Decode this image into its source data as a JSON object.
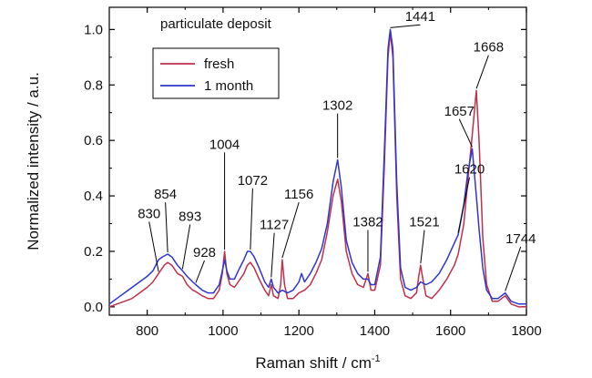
{
  "chart_data": {
    "type": "line",
    "title": "particulate deposit",
    "xlabel": "Raman shift / cm",
    "xlabel_superscript": "-1",
    "ylabel": "Normalized intensity / a.u.",
    "xlim": [
      700,
      1800
    ],
    "ylim": [
      -0.03,
      1.08
    ],
    "xticks": [
      800,
      1000,
      1200,
      1400,
      1600,
      1800
    ],
    "yticks": [
      0.0,
      0.2,
      0.4,
      0.6,
      0.8,
      1.0
    ],
    "ytick_labels": [
      "0.0",
      "0.2",
      "0.4",
      "0.6",
      "0.8",
      "1.0"
    ],
    "legend_position": "upper-left",
    "series": [
      {
        "name": "fresh",
        "color": "#c0304a",
        "points": [
          [
            700,
            0.0
          ],
          [
            720,
            0.01
          ],
          [
            740,
            0.02
          ],
          [
            760,
            0.03
          ],
          [
            780,
            0.05
          ],
          [
            800,
            0.07
          ],
          [
            815,
            0.09
          ],
          [
            830,
            0.12
          ],
          [
            845,
            0.15
          ],
          [
            854,
            0.16
          ],
          [
            865,
            0.15
          ],
          [
            880,
            0.12
          ],
          [
            893,
            0.11
          ],
          [
            905,
            0.08
          ],
          [
            920,
            0.06
          ],
          [
            928,
            0.055
          ],
          [
            945,
            0.04
          ],
          [
            960,
            0.03
          ],
          [
            975,
            0.03
          ],
          [
            990,
            0.06
          ],
          [
            998,
            0.12
          ],
          [
            1004,
            0.2
          ],
          [
            1010,
            0.12
          ],
          [
            1018,
            0.08
          ],
          [
            1030,
            0.07
          ],
          [
            1040,
            0.09
          ],
          [
            1055,
            0.12
          ],
          [
            1064,
            0.15
          ],
          [
            1072,
            0.16
          ],
          [
            1082,
            0.14
          ],
          [
            1095,
            0.1
          ],
          [
            1110,
            0.06
          ],
          [
            1120,
            0.04
          ],
          [
            1127,
            0.08
          ],
          [
            1133,
            0.04
          ],
          [
            1145,
            0.03
          ],
          [
            1152,
            0.08
          ],
          [
            1156,
            0.17
          ],
          [
            1162,
            0.08
          ],
          [
            1170,
            0.03
          ],
          [
            1185,
            0.03
          ],
          [
            1200,
            0.05
          ],
          [
            1215,
            0.06
          ],
          [
            1230,
            0.08
          ],
          [
            1245,
            0.12
          ],
          [
            1260,
            0.17
          ],
          [
            1275,
            0.27
          ],
          [
            1290,
            0.4
          ],
          [
            1302,
            0.46
          ],
          [
            1312,
            0.38
          ],
          [
            1325,
            0.2
          ],
          [
            1340,
            0.12
          ],
          [
            1355,
            0.08
          ],
          [
            1370,
            0.07
          ],
          [
            1382,
            0.12
          ],
          [
            1390,
            0.06
          ],
          [
            1400,
            0.06
          ],
          [
            1415,
            0.15
          ],
          [
            1425,
            0.5
          ],
          [
            1435,
            0.9
          ],
          [
            1441,
            0.99
          ],
          [
            1448,
            0.9
          ],
          [
            1458,
            0.4
          ],
          [
            1468,
            0.1
          ],
          [
            1480,
            0.04
          ],
          [
            1495,
            0.03
          ],
          [
            1510,
            0.05
          ],
          [
            1516,
            0.11
          ],
          [
            1521,
            0.15
          ],
          [
            1527,
            0.1
          ],
          [
            1535,
            0.04
          ],
          [
            1550,
            0.03
          ],
          [
            1570,
            0.06
          ],
          [
            1590,
            0.1
          ],
          [
            1610,
            0.15
          ],
          [
            1620,
            0.19
          ],
          [
            1635,
            0.3
          ],
          [
            1645,
            0.45
          ],
          [
            1657,
            0.62
          ],
          [
            1668,
            0.78
          ],
          [
            1675,
            0.6
          ],
          [
            1685,
            0.25
          ],
          [
            1695,
            0.08
          ],
          [
            1710,
            0.02
          ],
          [
            1725,
            0.02
          ],
          [
            1744,
            0.04
          ],
          [
            1760,
            0.01
          ],
          [
            1780,
            0.0
          ],
          [
            1800,
            0.0
          ]
        ]
      },
      {
        "name": "1 month",
        "color": "#2f35d0",
        "points": [
          [
            700,
            0.01
          ],
          [
            720,
            0.03
          ],
          [
            740,
            0.05
          ],
          [
            760,
            0.07
          ],
          [
            780,
            0.09
          ],
          [
            800,
            0.11
          ],
          [
            815,
            0.13
          ],
          [
            830,
            0.17
          ],
          [
            840,
            0.18
          ],
          [
            854,
            0.19
          ],
          [
            865,
            0.18
          ],
          [
            880,
            0.15
          ],
          [
            893,
            0.13
          ],
          [
            905,
            0.11
          ],
          [
            920,
            0.09
          ],
          [
            928,
            0.08
          ],
          [
            945,
            0.06
          ],
          [
            960,
            0.05
          ],
          [
            975,
            0.05
          ],
          [
            990,
            0.08
          ],
          [
            998,
            0.13
          ],
          [
            1004,
            0.17
          ],
          [
            1010,
            0.13
          ],
          [
            1018,
            0.1
          ],
          [
            1030,
            0.1
          ],
          [
            1040,
            0.13
          ],
          [
            1055,
            0.17
          ],
          [
            1064,
            0.2
          ],
          [
            1072,
            0.2
          ],
          [
            1082,
            0.18
          ],
          [
            1095,
            0.14
          ],
          [
            1110,
            0.09
          ],
          [
            1120,
            0.07
          ],
          [
            1127,
            0.1
          ],
          [
            1133,
            0.07
          ],
          [
            1145,
            0.05
          ],
          [
            1156,
            0.06
          ],
          [
            1170,
            0.05
          ],
          [
            1185,
            0.06
          ],
          [
            1200,
            0.09
          ],
          [
            1207,
            0.12
          ],
          [
            1215,
            0.09
          ],
          [
            1230,
            0.12
          ],
          [
            1245,
            0.16
          ],
          [
            1260,
            0.21
          ],
          [
            1275,
            0.3
          ],
          [
            1290,
            0.45
          ],
          [
            1302,
            0.53
          ],
          [
            1312,
            0.43
          ],
          [
            1325,
            0.24
          ],
          [
            1340,
            0.16
          ],
          [
            1355,
            0.12
          ],
          [
            1370,
            0.1
          ],
          [
            1382,
            0.1
          ],
          [
            1390,
            0.08
          ],
          [
            1400,
            0.08
          ],
          [
            1415,
            0.18
          ],
          [
            1425,
            0.55
          ],
          [
            1435,
            0.93
          ],
          [
            1441,
            1.0
          ],
          [
            1448,
            0.93
          ],
          [
            1458,
            0.45
          ],
          [
            1468,
            0.14
          ],
          [
            1480,
            0.07
          ],
          [
            1495,
            0.06
          ],
          [
            1510,
            0.07
          ],
          [
            1521,
            0.09
          ],
          [
            1535,
            0.08
          ],
          [
            1550,
            0.09
          ],
          [
            1570,
            0.12
          ],
          [
            1590,
            0.17
          ],
          [
            1610,
            0.23
          ],
          [
            1620,
            0.26
          ],
          [
            1635,
            0.37
          ],
          [
            1645,
            0.48
          ],
          [
            1657,
            0.57
          ],
          [
            1668,
            0.4
          ],
          [
            1675,
            0.28
          ],
          [
            1685,
            0.14
          ],
          [
            1695,
            0.06
          ],
          [
            1710,
            0.03
          ],
          [
            1725,
            0.03
          ],
          [
            1744,
            0.05
          ],
          [
            1760,
            0.02
          ],
          [
            1780,
            0.01
          ],
          [
            1800,
            0.01
          ]
        ]
      }
    ],
    "annotations": [
      {
        "text": "830",
        "x": 830,
        "y": 0.12,
        "tx": 805,
        "ty": 0.32
      },
      {
        "text": "854",
        "x": 854,
        "y": 0.19,
        "tx": 848,
        "ty": 0.39
      },
      {
        "text": "893",
        "x": 893,
        "y": 0.13,
        "tx": 913,
        "ty": 0.31
      },
      {
        "text": "928",
        "x": 928,
        "y": 0.08,
        "tx": 951,
        "ty": 0.18
      },
      {
        "text": "1004",
        "x": 1004,
        "y": 0.2,
        "tx": 1004,
        "ty": 0.57
      },
      {
        "text": "1072",
        "x": 1072,
        "y": 0.2,
        "tx": 1078,
        "ty": 0.44
      },
      {
        "text": "1127",
        "x": 1127,
        "y": 0.1,
        "tx": 1135,
        "ty": 0.28
      },
      {
        "text": "1156",
        "x": 1156,
        "y": 0.17,
        "tx": 1200,
        "ty": 0.39
      },
      {
        "text": "1302",
        "x": 1302,
        "y": 0.53,
        "tx": 1302,
        "ty": 0.71
      },
      {
        "text": "1382",
        "x": 1382,
        "y": 0.12,
        "tx": 1382,
        "ty": 0.29
      },
      {
        "text": "1441",
        "x": 1441,
        "y": 1.0,
        "tx": 1520,
        "ty": 1.03
      },
      {
        "text": "1521",
        "x": 1521,
        "y": 0.15,
        "tx": 1531,
        "ty": 0.29
      },
      {
        "text": "1620",
        "x": 1620,
        "y": 0.26,
        "tx": 1650,
        "ty": 0.48
      },
      {
        "text": "1657",
        "x": 1657,
        "y": 0.57,
        "tx": 1623,
        "ty": 0.69
      },
      {
        "text": "1668",
        "x": 1668,
        "y": 0.78,
        "tx": 1700,
        "ty": 0.92
      },
      {
        "text": "1744",
        "x": 1744,
        "y": 0.05,
        "tx": 1785,
        "ty": 0.23
      }
    ]
  }
}
